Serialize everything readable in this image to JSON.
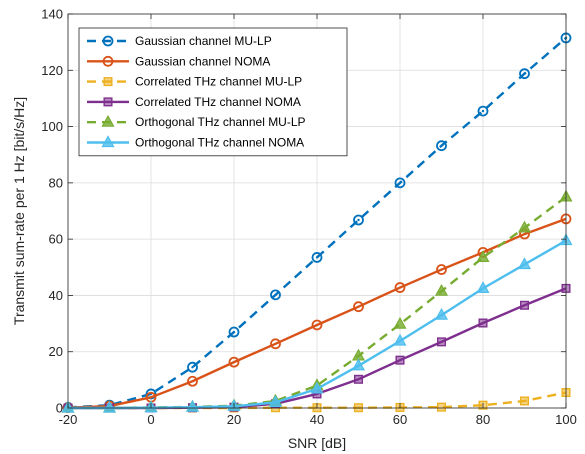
{
  "chart_data": {
    "type": "line",
    "title": "",
    "xlabel": "SNR [dB]",
    "ylabel": "Transmit sum-rate per 1 Hz [bit/s/Hz]",
    "xlim": [
      -20,
      100
    ],
    "ylim": [
      0,
      140
    ],
    "xticks": [
      -20,
      0,
      20,
      40,
      60,
      80,
      100
    ],
    "xtick_labels": [
      "-20",
      "0",
      "20",
      "40",
      "60",
      "80",
      "100"
    ],
    "yticks": [
      0,
      20,
      40,
      60,
      80,
      100,
      120,
      140
    ],
    "ytick_labels": [
      "0",
      "20",
      "40",
      "60",
      "80",
      "100",
      "120",
      "140"
    ],
    "grid": true,
    "legend_position": "top-left",
    "x": [
      -20,
      -10,
      0,
      10,
      20,
      30,
      40,
      50,
      60,
      70,
      80,
      90,
      100
    ],
    "series": [
      {
        "name": "Gaussian channel MU-LP",
        "color": "#0072BD",
        "dash": "dashed",
        "marker": "circle-dot",
        "values": [
          0.2,
          1.0,
          5.0,
          14.5,
          27.0,
          40.2,
          53.5,
          66.8,
          80.0,
          93.2,
          105.5,
          118.8,
          131.5
        ]
      },
      {
        "name": "Gaussian channel NOMA",
        "color": "#D95319",
        "dash": "solid",
        "marker": "circle",
        "values": [
          0.1,
          0.7,
          3.8,
          9.5,
          16.3,
          22.8,
          29.5,
          36.0,
          42.8,
          49.2,
          55.3,
          61.8,
          67.2
        ]
      },
      {
        "name": "Correlated THz channel MU-LP",
        "color": "#EDB120",
        "dash": "dashed",
        "marker": "square",
        "values": [
          0.0,
          0.0,
          0.0,
          0.0,
          0.0,
          0.1,
          0.1,
          0.1,
          0.2,
          0.3,
          1.0,
          2.5,
          5.5
        ]
      },
      {
        "name": "Correlated THz channel NOMA",
        "color": "#7E2F8E",
        "dash": "solid",
        "marker": "square",
        "values": [
          0.0,
          0.0,
          0.0,
          0.1,
          0.3,
          1.5,
          5.0,
          10.2,
          17.0,
          23.5,
          30.2,
          36.5,
          42.5
        ]
      },
      {
        "name": "Orthogonal THz channel MU-LP",
        "color": "#77AC30",
        "dash": "dashed",
        "marker": "triangle",
        "values": [
          0.0,
          0.0,
          0.2,
          0.4,
          0.8,
          2.5,
          8.0,
          18.5,
          29.8,
          41.5,
          53.5,
          64.0,
          75.0
        ]
      },
      {
        "name": "Orthogonal THz channel NOMA",
        "color": "#4DBEEE",
        "dash": "solid",
        "marker": "triangle",
        "values": [
          0.0,
          0.0,
          0.1,
          0.3,
          0.6,
          2.0,
          6.8,
          15.0,
          23.8,
          33.0,
          42.5,
          51.0,
          59.5
        ]
      }
    ]
  }
}
